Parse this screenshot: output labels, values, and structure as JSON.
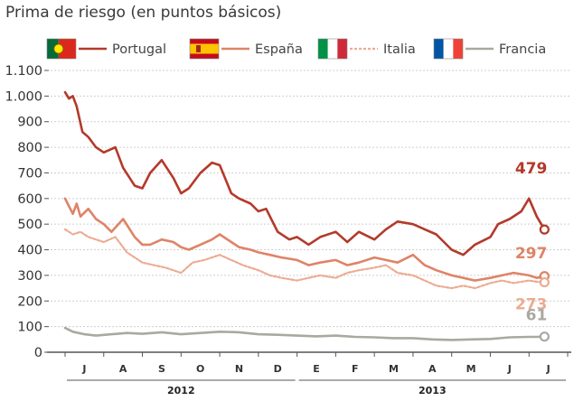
{
  "title": "Prima de riesgo (en puntos básicos)",
  "chart_data": {
    "type": "line",
    "title": "Prima de riesgo (en puntos básicos)",
    "xlabel": "",
    "ylabel": "",
    "ylim": [
      0,
      1100
    ],
    "yticks": [
      0,
      100,
      200,
      300,
      400,
      500,
      600,
      700,
      800,
      900,
      1000,
      1100
    ],
    "ytick_labels": [
      "0",
      "100",
      "200",
      "300",
      "400",
      "500",
      "600",
      "700",
      "800",
      "900",
      "1.000",
      "1.100"
    ],
    "grid": true,
    "months": [
      "J",
      "A",
      "S",
      "O",
      "N",
      "D",
      "E",
      "F",
      "M",
      "A",
      "M",
      "J",
      "J"
    ],
    "years": [
      {
        "label": "2012",
        "start_month": 0,
        "end_month": 5
      },
      {
        "label": "2013",
        "start_month": 6,
        "end_month": 12
      }
    ],
    "series": [
      {
        "name": "Portugal",
        "color": "#b33a2a",
        "dashed": false,
        "flag": "portugal",
        "end_label": "479",
        "x": [
          0,
          0.1,
          0.2,
          0.3,
          0.45,
          0.6,
          0.8,
          1.0,
          1.3,
          1.5,
          1.8,
          2.0,
          2.2,
          2.5,
          2.8,
          3.0,
          3.2,
          3.5,
          3.8,
          4.0,
          4.3,
          4.5,
          4.8,
          5.0,
          5.2,
          5.5,
          5.8,
          6.0,
          6.3,
          6.6,
          7.0,
          7.3,
          7.6,
          8.0,
          8.3,
          8.6,
          9.0,
          9.3,
          9.6,
          10.0,
          10.3,
          10.6,
          11.0,
          11.2,
          11.5,
          11.8,
          12.0,
          12.2,
          12.4
        ],
        "values": [
          1015,
          990,
          1000,
          960,
          860,
          840,
          800,
          780,
          800,
          720,
          650,
          640,
          700,
          750,
          680,
          620,
          640,
          700,
          740,
          730,
          620,
          600,
          580,
          550,
          560,
          470,
          440,
          450,
          420,
          450,
          470,
          430,
          470,
          440,
          480,
          510,
          500,
          480,
          460,
          400,
          380,
          420,
          450,
          500,
          520,
          550,
          600,
          530,
          479
        ]
      },
      {
        "name": "España",
        "color": "#de8466",
        "dashed": false,
        "flag": "spain",
        "end_label": "297",
        "x": [
          0,
          0.2,
          0.3,
          0.4,
          0.6,
          0.8,
          1.0,
          1.2,
          1.5,
          1.8,
          2.0,
          2.2,
          2.5,
          2.8,
          3.0,
          3.2,
          3.5,
          3.8,
          4.0,
          4.3,
          4.5,
          4.8,
          5.0,
          5.3,
          5.6,
          6.0,
          6.3,
          6.6,
          7.0,
          7.3,
          7.6,
          8.0,
          8.3,
          8.6,
          9.0,
          9.3,
          9.6,
          10.0,
          10.3,
          10.6,
          11.0,
          11.3,
          11.6,
          12.0,
          12.2,
          12.4
        ],
        "values": [
          600,
          540,
          580,
          530,
          560,
          520,
          500,
          470,
          520,
          450,
          420,
          420,
          440,
          430,
          410,
          400,
          420,
          440,
          460,
          430,
          410,
          400,
          390,
          380,
          370,
          360,
          340,
          350,
          360,
          340,
          350,
          370,
          360,
          350,
          380,
          340,
          320,
          300,
          290,
          280,
          290,
          300,
          310,
          300,
          290,
          297
        ]
      },
      {
        "name": "Italia",
        "color": "#ecab92",
        "dashed": true,
        "flag": "italy",
        "end_label": "273",
        "x": [
          0,
          0.2,
          0.4,
          0.6,
          0.8,
          1.0,
          1.3,
          1.6,
          2.0,
          2.3,
          2.6,
          3.0,
          3.3,
          3.6,
          4.0,
          4.3,
          4.6,
          5.0,
          5.3,
          5.6,
          6.0,
          6.3,
          6.6,
          7.0,
          7.3,
          7.6,
          8.0,
          8.3,
          8.6,
          9.0,
          9.3,
          9.6,
          10.0,
          10.3,
          10.6,
          11.0,
          11.3,
          11.6,
          12.0,
          12.2,
          12.4
        ],
        "values": [
          480,
          460,
          470,
          450,
          440,
          430,
          450,
          390,
          350,
          340,
          330,
          310,
          350,
          360,
          380,
          360,
          340,
          320,
          300,
          290,
          280,
          290,
          300,
          290,
          310,
          320,
          330,
          340,
          310,
          300,
          280,
          260,
          250,
          260,
          250,
          270,
          280,
          270,
          280,
          275,
          273
        ]
      },
      {
        "name": "Francia",
        "color": "#a9a9a0",
        "dashed": false,
        "flag": "france",
        "end_label": "61",
        "x": [
          0,
          0.2,
          0.5,
          0.8,
          1.2,
          1.6,
          2.0,
          2.5,
          3.0,
          3.5,
          4.0,
          4.5,
          5.0,
          5.5,
          6.0,
          6.5,
          7.0,
          7.5,
          8.0,
          8.5,
          9.0,
          9.5,
          10.0,
          10.5,
          11.0,
          11.5,
          12.0,
          12.2,
          12.4
        ],
        "values": [
          95,
          80,
          70,
          65,
          70,
          75,
          72,
          78,
          70,
          75,
          80,
          78,
          70,
          68,
          65,
          62,
          65,
          60,
          58,
          55,
          55,
          50,
          48,
          50,
          52,
          58,
          60,
          60,
          61
        ]
      }
    ]
  }
}
